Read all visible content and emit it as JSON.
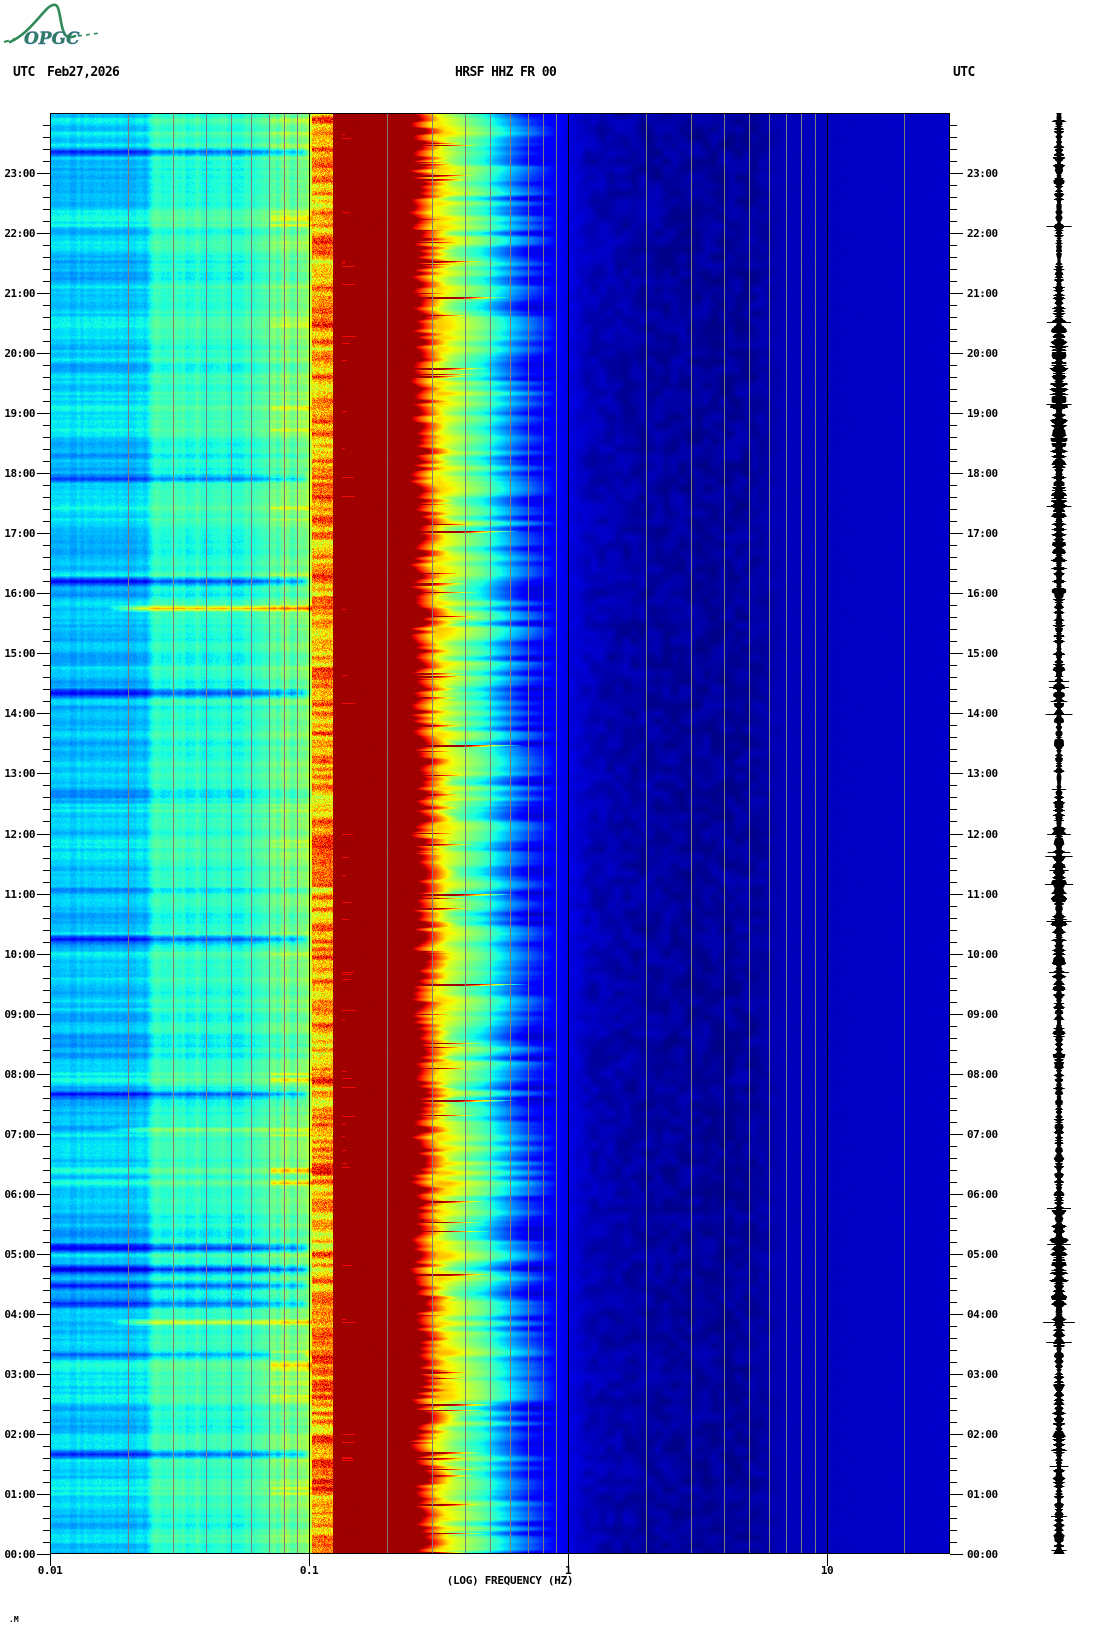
{
  "header": {
    "utc_label_left": "UTC",
    "date": "Feb27,2026",
    "title": "HRSF HHZ FR 00",
    "utc_label_right": "UTC"
  },
  "logo": {
    "text": "OPGC"
  },
  "axes": {
    "time_labels": [
      "23:00",
      "22:00",
      "21:00",
      "20:00",
      "19:00",
      "18:00",
      "17:00",
      "16:00",
      "15:00",
      "14:00",
      "13:00",
      "12:00",
      "11:00",
      "10:00",
      "09:00",
      "08:00",
      "07:00",
      "06:00",
      "05:00",
      "04:00",
      "03:00",
      "02:00",
      "01:00",
      "00:00"
    ],
    "minor_ticks_per_hour": 4,
    "freq_ticks": [
      {
        "label": "0.01",
        "hz": 0.01
      },
      {
        "label": "0.1",
        "hz": 0.1
      },
      {
        "label": "1",
        "hz": 1
      },
      {
        "label": "10",
        "hz": 10
      }
    ],
    "xlabel": "(LOG) FREQUENCY (HZ)"
  },
  "footer": {
    "artifact": ".M"
  },
  "colors": {
    "background": "#ffffff",
    "text": "#000000",
    "grid_line": "#7d7d7d",
    "decade_line": "#000000",
    "plot_border": "#000000",
    "trace": "#000000",
    "logo_green": "#2e8b57",
    "logo_text": "#2f7d5a"
  },
  "chart_data": {
    "type": "heatmap",
    "title": "HRSF HHZ FR 00",
    "date_utc": "Feb27,2026",
    "x_axis": {
      "label": "(LOG) FREQUENCY (HZ)",
      "scale": "log10",
      "min_hz": 0.01,
      "max_hz": 30,
      "labeled_ticks_hz": [
        0.01,
        0.1,
        1,
        10
      ],
      "gridlines": "grey at 2-9 multiples of each decade and 20 Hz; black at 0.1, 1, 10 Hz"
    },
    "y_axis": {
      "label": "UTC",
      "start": "00:00",
      "end": "24:00",
      "orientation": "00:00 at bottom, time increases upward",
      "major_tick_hours": 1,
      "minor_tick_minutes": 12
    },
    "colormap": "jet (navy - blue - cyan - green - yellow - orange - red - dark red)",
    "level_scale": "relative spectral power 0..1",
    "freq_level_profile": [
      [
        -2.0,
        0.32
      ],
      [
        -1.63,
        0.32
      ],
      [
        -1.6,
        0.4
      ],
      [
        -1.18,
        0.41
      ],
      [
        -1.15,
        0.47
      ],
      [
        -1.03,
        0.5
      ],
      [
        -0.99,
        0.62
      ],
      [
        -0.95,
        0.78
      ],
      [
        -0.91,
        0.975
      ]
    ],
    "tail_profile": [
      [
        -0.5,
        0.66
      ],
      [
        -0.46,
        0.6
      ],
      [
        -0.42,
        0.54
      ],
      [
        -0.38,
        0.485
      ],
      [
        -0.33,
        0.43
      ],
      [
        -0.28,
        0.35
      ],
      [
        -0.24,
        0.29
      ],
      [
        -0.2,
        0.235
      ],
      [
        -0.15,
        0.17
      ],
      [
        -0.1,
        0.135
      ],
      [
        -0.05,
        0.11
      ],
      [
        0.0,
        0.093
      ],
      [
        0.1,
        0.072
      ],
      [
        0.25,
        0.058
      ],
      [
        0.5,
        0.05
      ],
      [
        0.9,
        0.052
      ],
      [
        1.05,
        0.058
      ],
      [
        1.3,
        0.062
      ],
      [
        1.478,
        0.066
      ]
    ],
    "microseism_band": {
      "f_hz": [
        0.12,
        0.27
      ],
      "level": "saturated dark red (maximum)",
      "edge": "jagged, time-varying out to ~0.35 Hz"
    },
    "bright_column": {
      "f_hz": [
        0.1,
        0.125
      ],
      "level": "yellow-orange-red, strongly time-varying"
    },
    "low_freq_zone": {
      "f_hz": [
        0.01,
        0.1
      ],
      "level": "cyan with horizontal blue/green banding"
    },
    "quiet_zone": {
      "f_hz": [
        0.8,
        30
      ],
      "level": "deep navy with faint darker mottling near 1-5 Hz"
    },
    "events": {
      "dark_stripes_utc": [
        "23:22",
        "17:55",
        "16:12",
        "14:20",
        "10:15",
        "07:40",
        "05:06",
        "04:45",
        "04:29",
        "04:11",
        "03:20",
        "01:40"
      ],
      "bright_streaks": [
        {
          "utc": "15:45",
          "strength": 1.0,
          "f_range_hz": [
            0.02,
            0.13
          ]
        },
        {
          "utc": "07:05",
          "strength": 0.5,
          "f_range_hz": [
            0.03,
            0.11
          ]
        },
        {
          "utc": "03:52",
          "strength": 0.7,
          "f_range_hz": [
            0.03,
            0.11
          ]
        }
      ],
      "red_streaks_utc": [
        "20:56",
        "19:45",
        "17:02",
        "13:28",
        "11:00",
        "09:30",
        "07:34",
        "04:40",
        "02:30",
        "00:50"
      ]
    },
    "side_trace": {
      "position": "right of spectrogram",
      "type": "24-hour seismogram amplitude strip",
      "color": "#000000"
    }
  }
}
